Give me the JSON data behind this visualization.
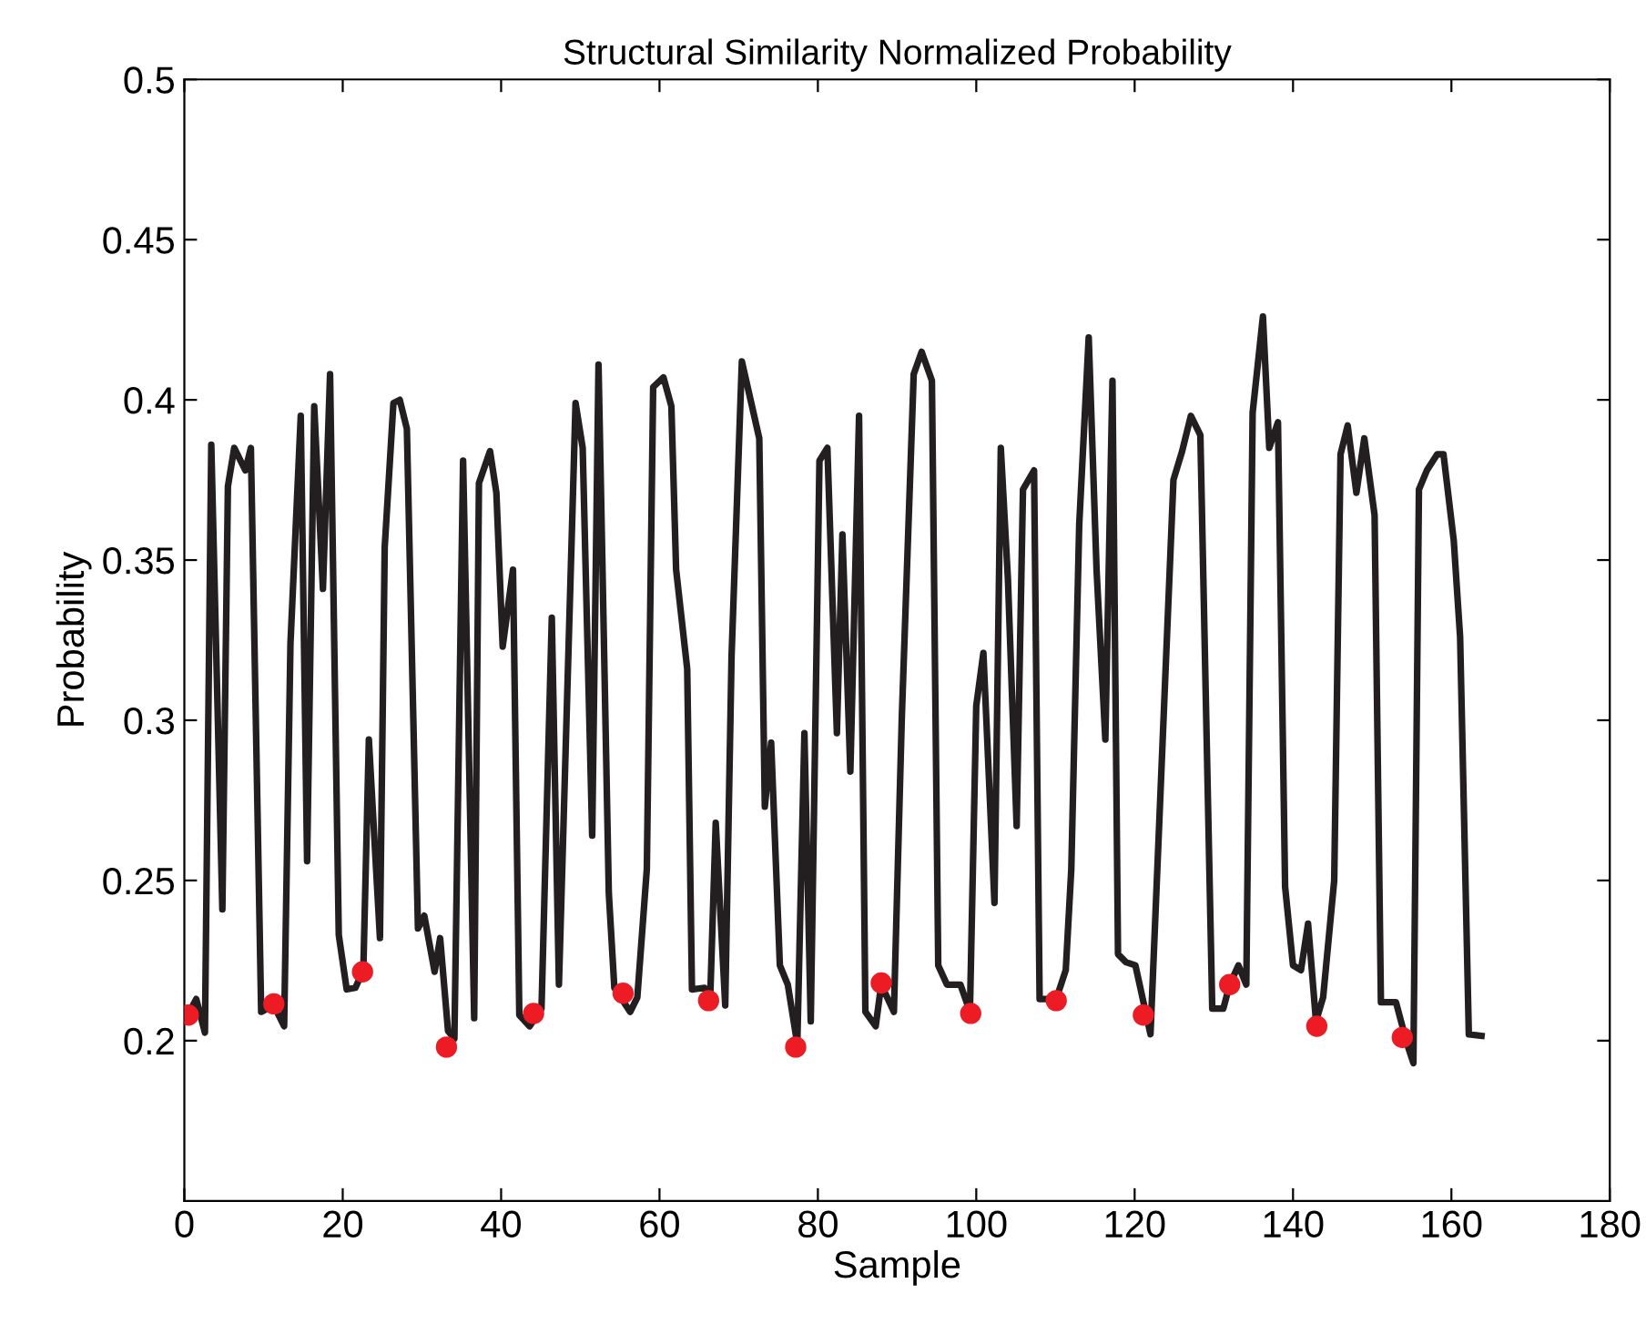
{
  "chart_data": {
    "type": "line",
    "title": "Structural Similarity Normalized Probability",
    "xlabel": "Sample",
    "ylabel": "Probability",
    "xlim": [
      0,
      180
    ],
    "xticks": [
      0,
      20,
      40,
      60,
      80,
      100,
      120,
      140,
      160,
      180
    ],
    "ylim": [
      0.15,
      0.5
    ],
    "yticks": [
      0.2,
      0.25,
      0.3,
      0.35,
      0.4,
      0.45,
      0.5
    ],
    "grid": false,
    "legend": false,
    "series": [
      {
        "color": "#231f20",
        "marker": "none",
        "line_style": "solid",
        "x": [
          0.2,
          1.5,
          2.6,
          3.4,
          4.8,
          5.5,
          6.3,
          7.7,
          8.4,
          9.7,
          11.3,
          12.6,
          13.4,
          14.7,
          15.5,
          16.4,
          17.5,
          18.4,
          19.5,
          20.5,
          21.6,
          22.6,
          23.3,
          24.7,
          25.3,
          26.4,
          27.2,
          28.1,
          29.5,
          30.3,
          31.6,
          32.3,
          33.3,
          34.1,
          35.2,
          36.6,
          37.2,
          38.6,
          39.4,
          40.2,
          41.5,
          42.3,
          43.6,
          45.1,
          46.4,
          47.3,
          49.4,
          50.3,
          51.5,
          52.3,
          53.6,
          54.3,
          56.3,
          57.2,
          58.4,
          59.2,
          60.5,
          61.5,
          62.1,
          63.5,
          64.1,
          65.7,
          66.4,
          67.1,
          68.3,
          69.1,
          70.4,
          72.6,
          73.3,
          74.1,
          75.2,
          76.2,
          77.4,
          78.3,
          79.1,
          80.2,
          81.2,
          82.4,
          83.1,
          84.1,
          85.2,
          86.0,
          87.3,
          88.0,
          89.6,
          90.6,
          92.1,
          93.1,
          94.4,
          95.2,
          96.3,
          98.0,
          99.2,
          100.0,
          100.9,
          102.3,
          103.1,
          104.0,
          105.1,
          105.9,
          107.3,
          108.0,
          110.1,
          111.3,
          112.0,
          113.0,
          114.2,
          115.2,
          116.3,
          117.2,
          117.9,
          118.9,
          120.1,
          122.0,
          124.9,
          126.0,
          127.1,
          128.3,
          129.8,
          131.2,
          132.0,
          133.1,
          134.1,
          134.9,
          136.2,
          137.0,
          138.1,
          139.0,
          140.0,
          141.0,
          141.9,
          142.9,
          143.8,
          145.2,
          146.0,
          146.9,
          148.0,
          149.0,
          150.3,
          151.1,
          153.0,
          154.4,
          155.2,
          155.9,
          156.9,
          158.2,
          159.0,
          160.3,
          161.1,
          162.2,
          163.8
        ],
        "values": [
          0.207,
          0.213,
          0.2025,
          0.386,
          0.241,
          0.373,
          0.385,
          0.378,
          0.385,
          0.209,
          0.211,
          0.2045,
          0.324,
          0.395,
          0.256,
          0.398,
          0.341,
          0.408,
          0.233,
          0.216,
          0.2165,
          0.222,
          0.294,
          0.232,
          0.354,
          0.399,
          0.4,
          0.391,
          0.235,
          0.239,
          0.2215,
          0.232,
          0.203,
          0.2006,
          0.381,
          0.207,
          0.374,
          0.384,
          0.371,
          0.323,
          0.347,
          0.208,
          0.2045,
          0.21,
          0.332,
          0.2175,
          0.399,
          0.385,
          0.264,
          0.411,
          0.246,
          0.2165,
          0.209,
          0.2135,
          0.2535,
          0.404,
          0.407,
          0.398,
          0.347,
          0.316,
          0.216,
          0.2165,
          0.213,
          0.268,
          0.211,
          0.32,
          0.412,
          0.388,
          0.273,
          0.293,
          0.2235,
          0.2175,
          0.199,
          0.296,
          0.206,
          0.381,
          0.385,
          0.296,
          0.358,
          0.284,
          0.395,
          0.209,
          0.2045,
          0.2175,
          0.209,
          0.301,
          0.408,
          0.415,
          0.406,
          0.2235,
          0.2175,
          0.2175,
          0.209,
          0.3045,
          0.321,
          0.243,
          0.385,
          0.344,
          0.267,
          0.372,
          0.378,
          0.213,
          0.213,
          0.222,
          0.2535,
          0.361,
          0.4195,
          0.3465,
          0.294,
          0.406,
          0.227,
          0.2245,
          0.2235,
          0.202,
          0.375,
          0.384,
          0.395,
          0.389,
          0.21,
          0.21,
          0.2175,
          0.2235,
          0.2175,
          0.396,
          0.426,
          0.385,
          0.393,
          0.248,
          0.2235,
          0.222,
          0.2365,
          0.206,
          0.2135,
          0.25,
          0.383,
          0.392,
          0.371,
          0.388,
          0.364,
          0.212,
          0.212,
          0.199,
          0.193,
          0.372,
          0.378,
          0.383,
          0.383,
          0.356,
          0.326,
          0.202,
          0.2015
        ]
      },
      {
        "type": "scatter",
        "color": "#ed1c24",
        "marker": "circle",
        "x": [
          0.5,
          11.3,
          22.5,
          33.1,
          44.1,
          55.4,
          66.2,
          77.2,
          88.0,
          99.3,
          110.1,
          121.1,
          132.0,
          143.0,
          153.8
        ],
        "values": [
          0.208,
          0.2115,
          0.2215,
          0.198,
          0.2085,
          0.2148,
          0.2125,
          0.198,
          0.218,
          0.2085,
          0.2125,
          0.208,
          0.2175,
          0.2045,
          0.201
        ]
      }
    ]
  }
}
